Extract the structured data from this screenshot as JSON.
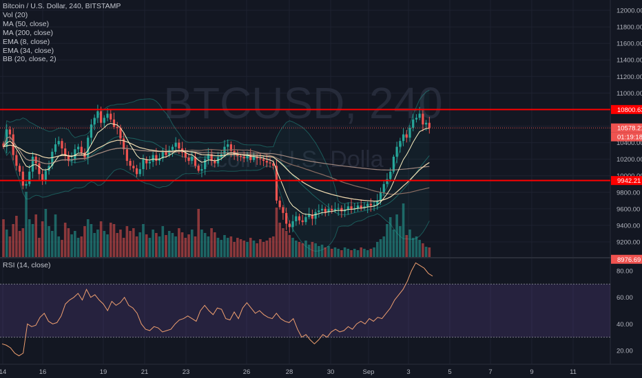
{
  "colors": {
    "background": "#131722",
    "grid": "#1e2230",
    "up": "#26a69a",
    "down": "#ef5350",
    "hline": "#ff0000",
    "ma50": "#8d6e63",
    "ma200": "#a1887f",
    "ema8": "#fff3c4",
    "ema34": "#f5deb3",
    "bb": "#26a69a",
    "rsi": "#f0a070",
    "rsi_band": "#7e57c2"
  },
  "legend": {
    "title": "Bitcoin / U.S. Dollar, 240, BITSTAMP",
    "vol": "Vol (20)",
    "ma50": "MA (50, close)",
    "ma200": "MA (200, close)",
    "ema8": "EMA (8, close)",
    "ema34": "EMA (34, close)",
    "bb": "BB (20, close, 2)"
  },
  "watermark": {
    "symbol": "BTCUSD, 240",
    "description": "Bitcoin / U.S. Dolla"
  },
  "rsi_legend": "RSI (14, close)",
  "price_labels": {
    "hline_top": "10800.63",
    "last": "10578.21",
    "countdown": "01:19:18",
    "hline_bottom": "9942.21",
    "bottom": "8976.69"
  },
  "chart_data": [
    {
      "type": "candlestick",
      "title": "Bitcoin / U.S. Dollar, 240, BITSTAMP",
      "x_ticks": [
        "14",
        "16",
        "19",
        "21",
        "23",
        "26",
        "28",
        "30",
        "Sep",
        "3",
        "5",
        "7",
        "9",
        "11"
      ],
      "y_ticks": [
        12000,
        11800,
        11600,
        11400,
        11200,
        11000,
        10800,
        10600,
        10400,
        10200,
        10000,
        9800,
        9600,
        9400,
        9200
      ],
      "ylim": [
        8976.69,
        12100
      ],
      "horizontal_lines": [
        10800.63,
        9942.21
      ],
      "last_price": 10578.21,
      "close": [
        10350,
        10560,
        10500,
        10250,
        10120,
        10050,
        9880,
        9900,
        10050,
        10230,
        10150,
        10020,
        9950,
        10060,
        10120,
        10290,
        10380,
        10420,
        10330,
        10250,
        10180,
        10200,
        10320,
        10350,
        10280,
        10220,
        10460,
        10620,
        10700,
        10780,
        10640,
        10700,
        10750,
        10680,
        10590,
        10580,
        10450,
        10320,
        10180,
        10120,
        10090,
        10020,
        10080,
        10200,
        10150,
        10170,
        10250,
        10180,
        10210,
        10300,
        10250,
        10310,
        10350,
        10400,
        10330,
        10280,
        10220,
        10180,
        10230,
        10120,
        10060,
        10080,
        10200,
        10260,
        10180,
        10150,
        10220,
        10260,
        10350,
        10380,
        10300,
        10260,
        10240,
        10230,
        10210,
        10250,
        10190,
        10230,
        10210,
        10200,
        10180,
        10160,
        10150,
        10120,
        9700,
        9620,
        9550,
        9420,
        9380,
        9450,
        9510,
        9460,
        9440,
        9500,
        9530,
        9480,
        9560,
        9580,
        9600,
        9560,
        9600,
        9580,
        9600,
        9610,
        9570,
        9590,
        9630,
        9600,
        9610,
        9640,
        9610,
        9630,
        9660,
        9640,
        9650,
        9700,
        9800,
        9900,
        9960,
        10050,
        10230,
        10350,
        10420,
        10500,
        10460,
        10580,
        10680,
        10700,
        10750,
        10620,
        10640,
        10578
      ],
      "volume": [
        55,
        40,
        30,
        48,
        60,
        38,
        42,
        95,
        55,
        48,
        62,
        28,
        52,
        70,
        45,
        38,
        62,
        30,
        25,
        50,
        42,
        33,
        38,
        28,
        30,
        45,
        55,
        48,
        35,
        40,
        52,
        38,
        33,
        50,
        48,
        35,
        40,
        28,
        45,
        38,
        42,
        30,
        36,
        48,
        33,
        28,
        40,
        35,
        30,
        45,
        32,
        38,
        35,
        30,
        42,
        36,
        28,
        33,
        40,
        30,
        70,
        40,
        35,
        30,
        42,
        36,
        28,
        25,
        32,
        28,
        30,
        22,
        28,
        26,
        24,
        22,
        28,
        24,
        20,
        26,
        22,
        24,
        28,
        30,
        72,
        50,
        42,
        38,
        32,
        28,
        24,
        22,
        20,
        24,
        18,
        22,
        20,
        16,
        18,
        14,
        16,
        12,
        14,
        12,
        10,
        14,
        12,
        10,
        12,
        10,
        14,
        12,
        10,
        12,
        14,
        22,
        26,
        30,
        48,
        58,
        40,
        62,
        45,
        78,
        32,
        40,
        28,
        30,
        25,
        20,
        15,
        14
      ]
    },
    {
      "type": "line",
      "title": "RSI (14, close)",
      "y_ticks": [
        80,
        60,
        40,
        20
      ],
      "ylim": [
        12,
        88
      ],
      "bands": [
        30,
        70
      ],
      "values": [
        25,
        24,
        22,
        18,
        16,
        18,
        40,
        38,
        39,
        45,
        48,
        42,
        40,
        41,
        46,
        55,
        58,
        60,
        63,
        58,
        66,
        60,
        62,
        58,
        55,
        50,
        57,
        54,
        56,
        60,
        54,
        52,
        48,
        40,
        36,
        35,
        38,
        37,
        34,
        35,
        36,
        40,
        43,
        44,
        46,
        44,
        42,
        50,
        54,
        50,
        47,
        52,
        51,
        44,
        43,
        49,
        44,
        52,
        56,
        52,
        48,
        50,
        47,
        45,
        44,
        48,
        44,
        42,
        41,
        44,
        36,
        30,
        32,
        28,
        25,
        28,
        32,
        30,
        34,
        36,
        34,
        35,
        38,
        36,
        40,
        42,
        40,
        44,
        42,
        45,
        44,
        48,
        52,
        58,
        62,
        66,
        72,
        80,
        86,
        84,
        82,
        78,
        76
      ]
    }
  ]
}
